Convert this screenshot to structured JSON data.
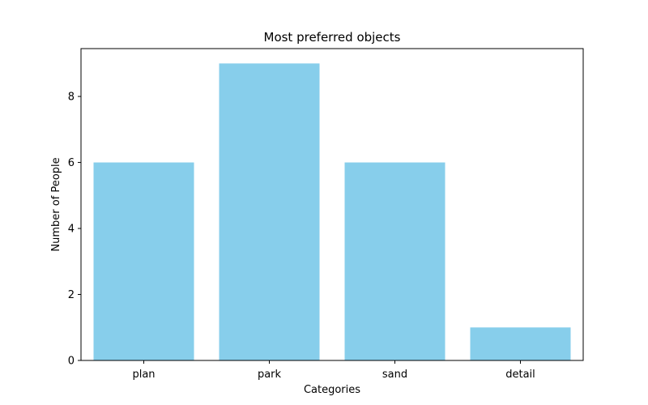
{
  "chart_data": {
    "type": "bar",
    "title": "Most preferred objects",
    "xlabel": "Categories",
    "ylabel": "Number of People",
    "categories": [
      "plan",
      "park",
      "sand",
      "detail"
    ],
    "values": [
      6,
      9,
      6,
      1
    ],
    "ylim": [
      0,
      9.45
    ],
    "yticks": [
      0,
      2,
      4,
      6,
      8
    ],
    "bar_color": "#87CEEB",
    "grid": false,
    "legend": "none"
  }
}
